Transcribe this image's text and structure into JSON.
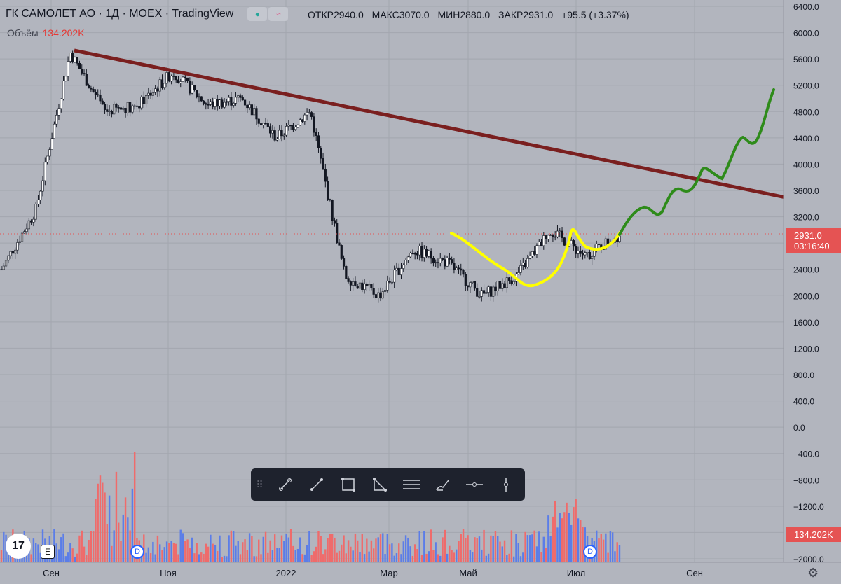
{
  "header": {
    "title": "ГК САМОЛЕТ АО · 1Д · MOEX · TradingView",
    "ohlc": {
      "open_label": "ОТКР",
      "open": "2940.0",
      "high_label": "МАКС",
      "high": "3070.0",
      "low_label": "МИН",
      "low": "2880.0",
      "close_label": "ЗАКР",
      "close": "2931.0",
      "change": "+95.5 (+3.37%)"
    },
    "volume_label": "Объём",
    "volume_value": "134.202K"
  },
  "price_axis": {
    "ticks": [
      "6400.0",
      "6000.0",
      "5600.0",
      "5200.0",
      "4800.0",
      "4400.0",
      "4000.0",
      "3600.0",
      "3200.0",
      "2800.0",
      "2400.0",
      "2000.0",
      "1600.0",
      "1200.0",
      "800.0",
      "400.0",
      "0.0",
      "−400.0",
      "−800.0",
      "−1200.0",
      "−1600.0",
      "−2000.0"
    ],
    "last_price": "2931.0",
    "countdown": "03:16:40",
    "volume_tag": "134.202K"
  },
  "time_axis": {
    "ticks": [
      "Сен",
      "Ноя",
      "2022",
      "Мар",
      "Май",
      "Июл",
      "Сен"
    ]
  },
  "markers": {
    "logo": "17",
    "earnings": "E",
    "dividend": "D"
  },
  "colors": {
    "up": "#5b7de8",
    "down": "#ef6b6b",
    "trend": "#7a1f1f",
    "forecast": "#2e8b1a",
    "highlight": "#ffff00",
    "price_line": "#e55353"
  },
  "toolbar": {
    "icons": [
      "trend-line-icon",
      "ray-icon",
      "rectangle-icon",
      "triangle-icon",
      "parallel-lines-icon",
      "brush-icon",
      "horizontal-ray-icon",
      "vertical-line-icon"
    ]
  },
  "chart_data": {
    "type": "candlestick",
    "series_name": "ГК САМОЛЕТ АО",
    "interval": "1Д",
    "price_range": [
      -2000,
      6400
    ],
    "grid": true,
    "approx_close_path": [
      [
        "Авг",
        2400
      ],
      [
        "Сен",
        3300
      ],
      [
        "Сен",
        5700
      ],
      [
        "Окт",
        4800
      ],
      [
        "Ноя",
        4900
      ],
      [
        "Дек",
        5400
      ],
      [
        "Дек",
        4900
      ],
      [
        "2022",
        5000
      ],
      [
        "Янв",
        4400
      ],
      [
        "Фев",
        4800
      ],
      [
        "Мар",
        2300
      ],
      [
        "Мар",
        2000
      ],
      [
        "Апр",
        2700
      ],
      [
        "Май",
        2500
      ],
      [
        "Июн",
        2000
      ],
      [
        "Июн",
        2300
      ],
      [
        "Июл",
        3000
      ],
      [
        "Июл",
        2600
      ],
      [
        "Июл",
        2931
      ]
    ],
    "last_price": 2931.0,
    "annotations": {
      "trend_line": "downward resistance from ~5700 (Сен) sloping to ~3450 (right edge)",
      "yellow_curve": "hand-drawn cup shape from ~2850 (Апр) down to ~2150 (Июн) up to ~3050 (Июл)",
      "green_curve": "hand-drawn forecast rising from ~2931 (Июл) to ~5150 (Сен)"
    }
  }
}
